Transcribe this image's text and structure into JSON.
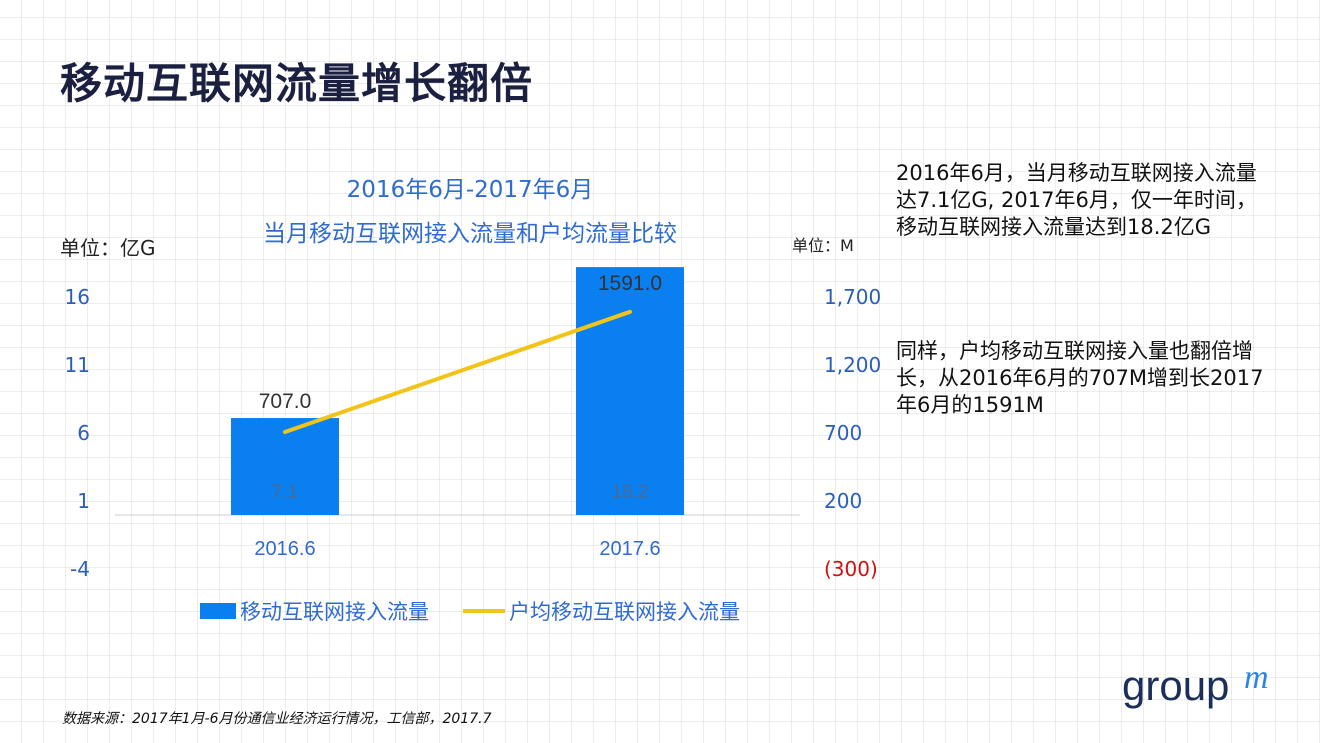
{
  "title": "移动互联网流量增长翻倍",
  "chart_title_line1": "2016年6月-2017年6月",
  "chart_title_line2": "当月移动互联网接入流量和户均流量比较",
  "left_unit": "单位：亿G",
  "right_unit": "单位：M",
  "note_p1": "2016年6月，当月移动互联网接入流量达7.1亿G, 2017年6月，仅一年时间，移动互联网接入流量达到18.2亿G",
  "note_p2": "同样，户均移动互联网接入量也翻倍增长，从2016年6月的707M增到长2017年6月的1591M",
  "legend_bar": "移动互联网接入流量",
  "legend_line": "户均移动互联网接入流量",
  "source": "数据来源：2017年1月-6月份通信业经济运行情况，工信部，2017.7",
  "logo_text": "group",
  "logo_mark": "m",
  "colors": {
    "bar": "#0a7ff0",
    "line": "#f2c418",
    "accent": "#2f6bd0",
    "negative": "#d01010"
  },
  "chart_data": {
    "type": "bar",
    "categories": [
      "2016.6",
      "2017.6"
    ],
    "series": [
      {
        "name": "移动互联网接入流量",
        "type": "bar",
        "axis": "left",
        "values": [
          7.1,
          18.2
        ],
        "labels": [
          "7.1",
          "18.2"
        ]
      },
      {
        "name": "户均移动互联网接入流量",
        "type": "line",
        "axis": "right",
        "values": [
          707,
          1591
        ],
        "labels": [
          "707.0",
          "1591.0"
        ]
      }
    ],
    "y_left": {
      "min": -4,
      "max": 16,
      "ticks": [
        "-4",
        "1",
        "6",
        "11",
        "16"
      ],
      "tick_values": [
        -4,
        1,
        6,
        11,
        16
      ]
    },
    "y_right": {
      "min": -300,
      "max": 1700,
      "ticks": [
        "(300)",
        "200",
        "700",
        "1,200",
        "1,700"
      ],
      "tick_values": [
        -300,
        200,
        700,
        1200,
        1700
      ]
    },
    "legend_position": "bottom"
  }
}
